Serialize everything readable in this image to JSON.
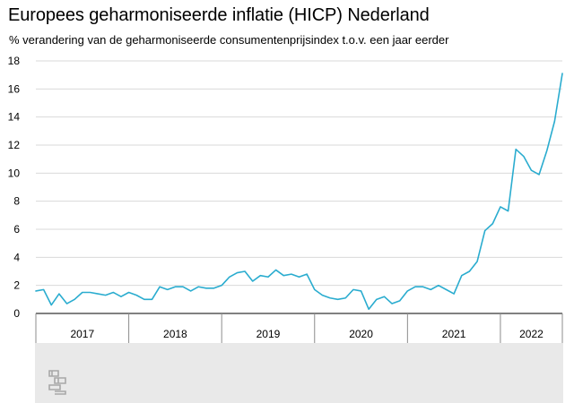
{
  "chart_data": {
    "type": "line",
    "title": "Europees geharmoniseerde inflatie (HICP) Nederland",
    "subtitle": "% verandering van de geharmoniseerde consumentenprijsindex t.o.v. een jaar eerder",
    "xlabel": "",
    "ylabel": "",
    "ylim": [
      0,
      18
    ],
    "yticks": [
      "0",
      "2",
      "4",
      "6",
      "8",
      "10",
      "12",
      "14",
      "16",
      "18"
    ],
    "x_year_labels": [
      "2017",
      "2018",
      "2019",
      "2020",
      "2021",
      "2022"
    ],
    "grid": "horizontal",
    "line_color": "#2aaccf",
    "series": [
      {
        "values": [
          1.6,
          1.7,
          0.6,
          1.4,
          0.7,
          1.0,
          1.5,
          1.5,
          1.4,
          1.3,
          1.5,
          1.2,
          1.5,
          1.3,
          1.0,
          1.0,
          1.9,
          1.7,
          1.9,
          1.9,
          1.6,
          1.9,
          1.8,
          1.8,
          2.0,
          2.6,
          2.9,
          3.0,
          2.3,
          2.7,
          2.6,
          3.1,
          2.7,
          2.8,
          2.6,
          2.8,
          1.7,
          1.3,
          1.1,
          1.0,
          1.1,
          1.7,
          1.6,
          0.3,
          1.0,
          1.2,
          0.7,
          0.9,
          1.6,
          1.9,
          1.9,
          1.7,
          2.0,
          1.7,
          1.4,
          2.7,
          3.0,
          3.7,
          5.9,
          6.4,
          7.6,
          7.3,
          11.7,
          11.2,
          10.2,
          9.9,
          11.6,
          13.7,
          17.1
        ]
      }
    ]
  },
  "footer": {
    "logo_name": "cbs-logo-icon"
  }
}
